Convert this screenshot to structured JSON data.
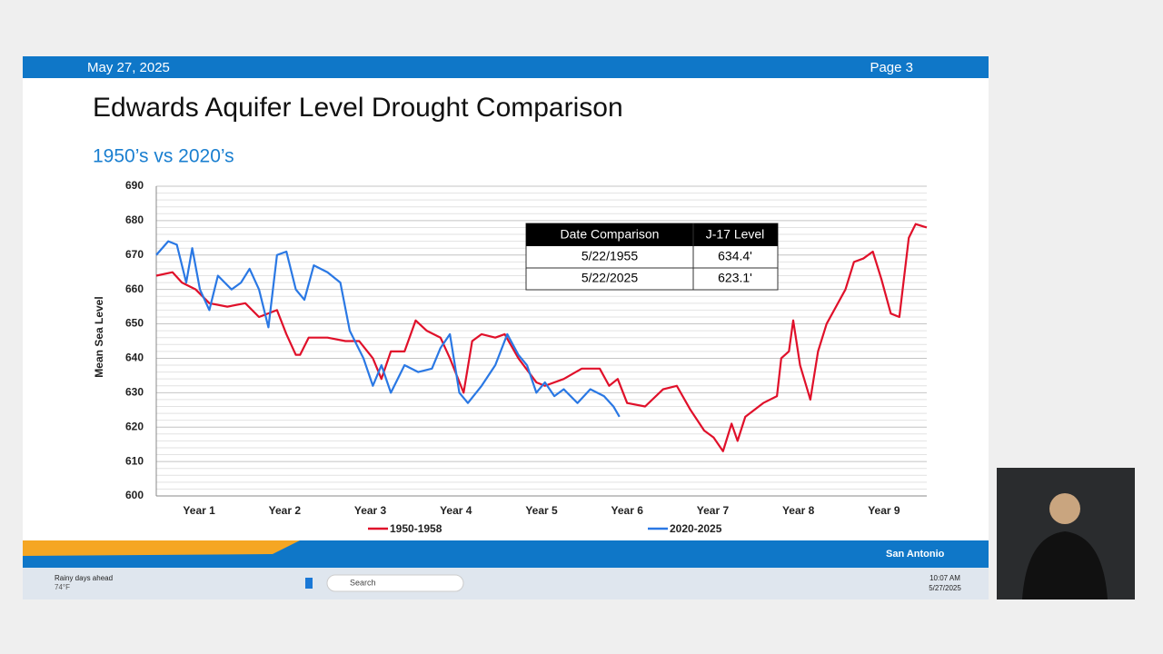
{
  "slide": {
    "date": "May 27, 2025",
    "page": "Page 3",
    "title": "Edwards Aquifer Level Drought Comparison",
    "subtitle": "1950’s vs 2020’s",
    "logo": "San Antonio"
  },
  "table": {
    "header": [
      "Date Comparison",
      "J-17 Level"
    ],
    "rows": [
      [
        "5/22/1955",
        "634.4'"
      ],
      [
        "5/22/2025",
        "623.1'"
      ]
    ]
  },
  "taskbar": {
    "weather": "Rainy days ahead",
    "temp": "74°F",
    "search": "Search",
    "time": "10:07 AM",
    "date": "5/27/2025"
  },
  "chart_data": {
    "type": "line",
    "ylabel": "Mean Sea Level",
    "xlim": [
      0,
      9
    ],
    "xticks": [
      {
        "value": 0.5,
        "label": "Year 1"
      },
      {
        "value": 1.5,
        "label": "Year 2"
      },
      {
        "value": 2.5,
        "label": "Year 3"
      },
      {
        "value": 3.5,
        "label": "Year 4"
      },
      {
        "value": 4.5,
        "label": "Year 5"
      },
      {
        "value": 5.5,
        "label": "Year 6"
      },
      {
        "value": 6.5,
        "label": "Year 7"
      },
      {
        "value": 7.5,
        "label": "Year 8"
      },
      {
        "value": 8.5,
        "label": "Year 9"
      }
    ],
    "ylim": [
      600,
      690
    ],
    "yticks": [
      600,
      610,
      620,
      630,
      640,
      650,
      660,
      670,
      680,
      690
    ],
    "minor_yticks": [
      602,
      604,
      606,
      608,
      612,
      614,
      616,
      618,
      622,
      624,
      626,
      628,
      632,
      634,
      636,
      638,
      642,
      644,
      646,
      648,
      652,
      654,
      656,
      658,
      662,
      664,
      666,
      668,
      672,
      674,
      676,
      678,
      682,
      684,
      686,
      688
    ],
    "grid": true,
    "legend": "bottom",
    "series": [
      {
        "name": "1950-1958",
        "color": "#e0102a",
        "x": [
          0,
          0.19,
          0.3,
          0.46,
          0.62,
          0.83,
          1.04,
          1.2,
          1.41,
          1.52,
          1.63,
          1.68,
          1.78,
          2.0,
          2.21,
          2.37,
          2.53,
          2.63,
          2.74,
          2.9,
          3.03,
          3.16,
          3.32,
          3.43,
          3.59,
          3.69,
          3.8,
          3.96,
          4.07,
          4.23,
          4.44,
          4.54,
          4.76,
          4.97,
          5.18,
          5.29,
          5.39,
          5.5,
          5.71,
          5.92,
          6.08,
          6.24,
          6.4,
          6.51,
          6.62,
          6.72,
          6.79,
          6.88,
          7.09,
          7.25,
          7.3,
          7.39,
          7.44,
          7.52,
          7.64,
          7.73,
          7.83,
          7.94,
          8.05,
          8.15,
          8.26,
          8.37,
          8.47,
          8.58,
          8.68,
          8.79,
          8.87,
          9.0
        ],
        "values": [
          664,
          665,
          662,
          660,
          656,
          655,
          656,
          652,
          654,
          647,
          641,
          641,
          646,
          646,
          645,
          645,
          640,
          634,
          642,
          642,
          651,
          648,
          646,
          640,
          630,
          645,
          647,
          646,
          647,
          640,
          633,
          632,
          634,
          637,
          637,
          632,
          634,
          627,
          626,
          631,
          632,
          625,
          619,
          617,
          613,
          621,
          616,
          623,
          627,
          629,
          640,
          642,
          651,
          638,
          628,
          642,
          650,
          655,
          660,
          668,
          669,
          671,
          663,
          653,
          652,
          675,
          679,
          678
        ]
      },
      {
        "name": "2020-2025",
        "color": "#2a78e4",
        "x": [
          0,
          0.14,
          0.24,
          0.35,
          0.42,
          0.51,
          0.62,
          0.72,
          0.88,
          0.99,
          1.09,
          1.2,
          1.31,
          1.41,
          1.52,
          1.63,
          1.73,
          1.84,
          2.0,
          2.15,
          2.26,
          2.42,
          2.53,
          2.63,
          2.74,
          2.9,
          3.06,
          3.22,
          3.32,
          3.43,
          3.54,
          3.64,
          3.8,
          3.96,
          4.1,
          4.23,
          4.33,
          4.44,
          4.54,
          4.65,
          4.76,
          4.92,
          5.07,
          5.23,
          5.34,
          5.41
        ],
        "values": [
          670,
          674,
          673,
          662,
          672,
          660,
          654,
          664,
          660,
          662,
          666,
          660,
          649,
          670,
          671,
          660,
          657,
          667,
          665,
          662,
          648,
          640,
          632,
          638,
          630,
          638,
          636,
          637,
          643,
          647,
          630,
          627,
          632,
          638,
          647,
          641,
          638,
          630,
          633,
          629,
          631,
          627,
          631,
          629,
          626,
          623
        ]
      }
    ]
  }
}
